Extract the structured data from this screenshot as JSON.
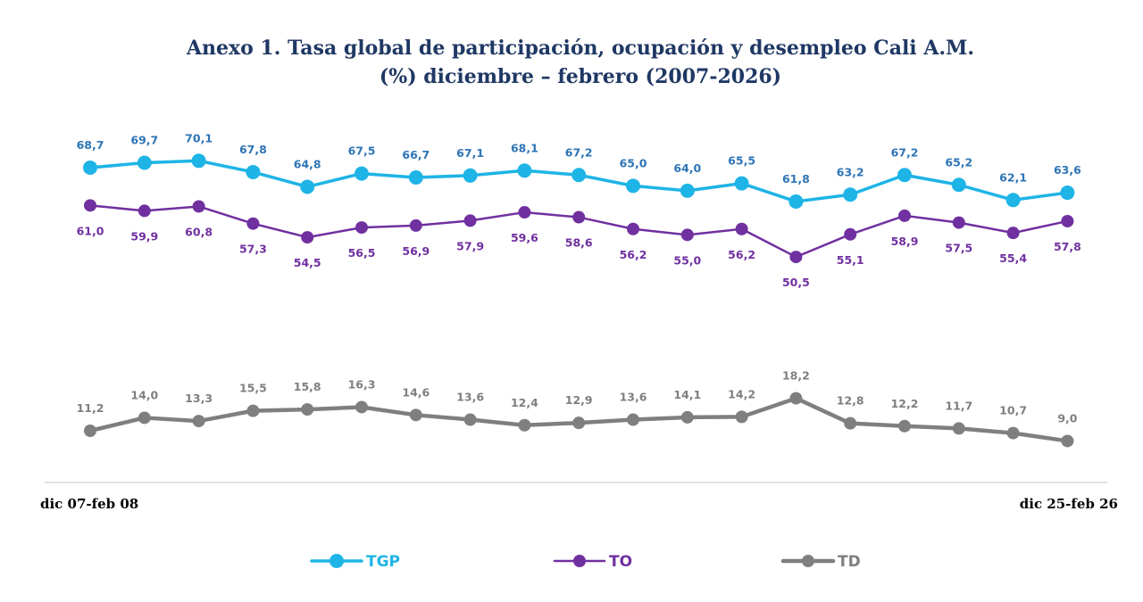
{
  "chart_data": {
    "type": "line",
    "title": "Anexo 1. Tasa global de participación, ocupación y desempleo Cali A.M.",
    "subtitle": "(%) diciembre – febrero (2007-2026)",
    "x_start_label": "dic 07-feb 08",
    "x_end_label": "dic 25-feb 26",
    "grid": false,
    "legend_position": "bottom",
    "series": [
      {
        "name": "TGP",
        "color": "#1eb4e6",
        "label_position": "above",
        "label_color": "#2e75b6",
        "values": [
          68.7,
          69.7,
          70.1,
          67.8,
          64.8,
          67.5,
          66.7,
          67.1,
          68.1,
          67.2,
          65.0,
          64.0,
          65.5,
          61.8,
          63.2,
          67.2,
          65.2,
          62.1,
          63.6
        ],
        "labels": [
          "68,7",
          "69,7",
          "70,1",
          "67,8",
          "64,8",
          "67,5",
          "66,7",
          "67,1",
          "68,1",
          "67,2",
          "65,0",
          "64,0",
          "65,5",
          "61,8",
          "63,2",
          "67,2",
          "65,2",
          "62,1",
          "63,6"
        ]
      },
      {
        "name": "TO",
        "color": "#7030a0",
        "label_position": "below",
        "label_color": "#7030a0",
        "values": [
          61.0,
          59.9,
          60.8,
          57.3,
          54.5,
          56.5,
          56.9,
          57.9,
          59.6,
          58.6,
          56.2,
          55.0,
          56.2,
          50.5,
          55.1,
          58.9,
          57.5,
          55.4,
          57.8
        ],
        "labels": [
          "61,0",
          "59,9",
          "60,8",
          "57,3",
          "54,5",
          "56,5",
          "56,9",
          "57,9",
          "59,6",
          "58,6",
          "56,2",
          "55,0",
          "56,2",
          "50,5",
          "55,1",
          "58,9",
          "57,5",
          "55,4",
          "57,8"
        ]
      },
      {
        "name": "TD",
        "color": "#7f7f7f",
        "label_position": "above",
        "label_color": "#7f7f7f",
        "values": [
          11.2,
          14.0,
          13.3,
          15.5,
          15.8,
          16.3,
          14.6,
          13.6,
          12.4,
          12.9,
          13.6,
          14.1,
          14.2,
          18.2,
          12.8,
          12.2,
          11.7,
          10.7,
          9.0
        ],
        "labels": [
          "11,2",
          "14,0",
          "13,3",
          "15,5",
          "15,8",
          "16,3",
          "14,6",
          "13,6",
          "12,4",
          "12,9",
          "13,6",
          "14,1",
          "14,2",
          "18,2",
          "12,8",
          "12,2",
          "11,7",
          "10,7",
          "9,0"
        ]
      }
    ]
  }
}
